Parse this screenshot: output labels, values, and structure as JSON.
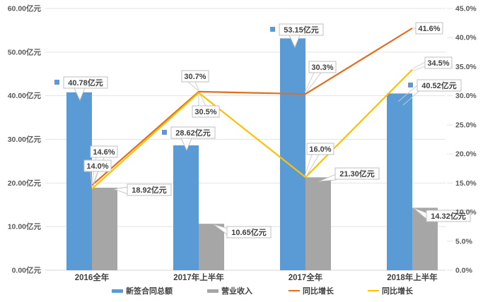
{
  "chart_data": {
    "type": "combo-bar-line",
    "title": "",
    "categories": [
      "2016全年",
      "2017年上半年",
      "2017全年",
      "2018年上半年"
    ],
    "bar_series": [
      {
        "name": "新签合同总额",
        "color": "#5B9BD5",
        "axis": "left",
        "values": [
          40.78,
          28.62,
          53.15,
          40.52
        ],
        "labels": [
          "40.78亿元",
          "28.62亿元",
          "53.15亿元",
          "40.52亿元"
        ]
      },
      {
        "name": "营业收入",
        "color": "#A6A6A6",
        "axis": "left",
        "values": [
          18.92,
          10.65,
          21.3,
          14.32
        ],
        "labels": [
          "18.92亿元",
          "10.65亿元",
          "21.30亿元",
          "14.32亿元"
        ]
      }
    ],
    "line_series": [
      {
        "name": "同比增长",
        "color": "#E36C1E",
        "axis": "right",
        "values": [
          14.6,
          30.7,
          30.3,
          41.6
        ],
        "labels": [
          "14.6%",
          "30.7%",
          "30.3%",
          "41.6%"
        ]
      },
      {
        "name": "同比增长",
        "color": "#FFC000",
        "axis": "right",
        "values": [
          14.0,
          30.5,
          16.0,
          34.5
        ],
        "labels": [
          "14.0%",
          "30.5%",
          "16.0%",
          "34.5%"
        ]
      }
    ],
    "left_axis": {
      "min": 0,
      "max": 60,
      "step": 10,
      "tick_labels": [
        "0.00亿元",
        "10.00亿元",
        "20.00亿元",
        "30.00亿元",
        "40.00亿元",
        "50.00亿元",
        "60.00亿元"
      ]
    },
    "right_axis": {
      "min": 0,
      "max": 45,
      "step": 5,
      "tick_labels": [
        "0.0%",
        "5.0%",
        "10.0%",
        "15.0%",
        "20.0%",
        "25.0%",
        "30.0%",
        "35.0%",
        "40.0%",
        "45.0%"
      ]
    },
    "legend": {
      "position": "bottom",
      "items": [
        {
          "label": "新签合同总额",
          "swatch": "bar",
          "color": "#5B9BD5"
        },
        {
          "label": "营业收入",
          "swatch": "bar",
          "color": "#A6A6A6"
        },
        {
          "label": "同比增长",
          "swatch": "line",
          "color": "#E36C1E"
        },
        {
          "label": "同比增长",
          "swatch": "line",
          "color": "#FFC000"
        }
      ]
    },
    "grid": true,
    "background": "#FFFFFF",
    "gridline_color": "#E3E3E3",
    "baseline_color": "#D5D5D5",
    "axis_text_color": "#595959",
    "category_text_color": "#404040",
    "callout_text_color": "#3F3F3F",
    "callout_border_color": "#BFBFBF"
  }
}
